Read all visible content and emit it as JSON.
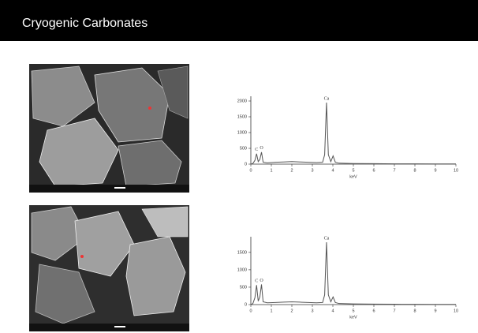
{
  "header": {
    "title": "Cryogenic Carbonates"
  },
  "chart_data": [
    {
      "type": "line",
      "color": "#555555",
      "x_label": "keV",
      "x": [
        0,
        0.1,
        0.2,
        0.28,
        0.36,
        0.44,
        0.52,
        0.6,
        0.8,
        1.2,
        1.6,
        2.0,
        2.4,
        2.8,
        3.2,
        3.5,
        3.6,
        3.69,
        3.78,
        3.9,
        4.01,
        4.12,
        4.3,
        5,
        6,
        7,
        8,
        9,
        10
      ],
      "values": [
        0,
        20,
        120,
        330,
        80,
        150,
        380,
        60,
        40,
        60,
        70,
        80,
        70,
        60,
        50,
        60,
        300,
        1950,
        300,
        80,
        260,
        60,
        30,
        20,
        15,
        10,
        8,
        5,
        5
      ],
      "xlim": [
        0,
        10
      ],
      "xticks": [
        0,
        1,
        2,
        3,
        4,
        5,
        6,
        7,
        8,
        9,
        10
      ],
      "ylim": [
        0,
        2150
      ],
      "yticks": [
        0,
        500,
        1000,
        1500,
        2000
      ],
      "annotations": [
        {
          "text": "C",
          "x": 0.28,
          "y": 330
        },
        {
          "text": "O",
          "x": 0.52,
          "y": 380
        },
        {
          "text": "Ca",
          "x": 3.69,
          "y": 1950
        }
      ]
    },
    {
      "type": "line",
      "color": "#555555",
      "x_label": "keV",
      "x": [
        0,
        0.1,
        0.2,
        0.28,
        0.36,
        0.44,
        0.52,
        0.6,
        0.8,
        1.2,
        1.6,
        2.0,
        2.4,
        2.8,
        3.2,
        3.5,
        3.6,
        3.69,
        3.78,
        3.9,
        4.01,
        4.12,
        4.3,
        5,
        6,
        7,
        8,
        9,
        10
      ],
      "values": [
        0,
        30,
        200,
        560,
        100,
        220,
        580,
        80,
        50,
        60,
        70,
        80,
        70,
        60,
        50,
        60,
        280,
        1790,
        280,
        80,
        220,
        60,
        30,
        20,
        15,
        10,
        8,
        5,
        5
      ],
      "xlim": [
        0,
        10
      ],
      "xticks": [
        0,
        1,
        2,
        3,
        4,
        5,
        6,
        7,
        8,
        9,
        10
      ],
      "ylim": [
        0,
        1950
      ],
      "yticks": [
        0,
        500,
        1000,
        1500
      ],
      "annotations": [
        {
          "text": "C",
          "x": 0.28,
          "y": 560
        },
        {
          "text": "O",
          "x": 0.52,
          "y": 580
        },
        {
          "text": "Ca",
          "x": 3.69,
          "y": 1790
        }
      ]
    }
  ]
}
